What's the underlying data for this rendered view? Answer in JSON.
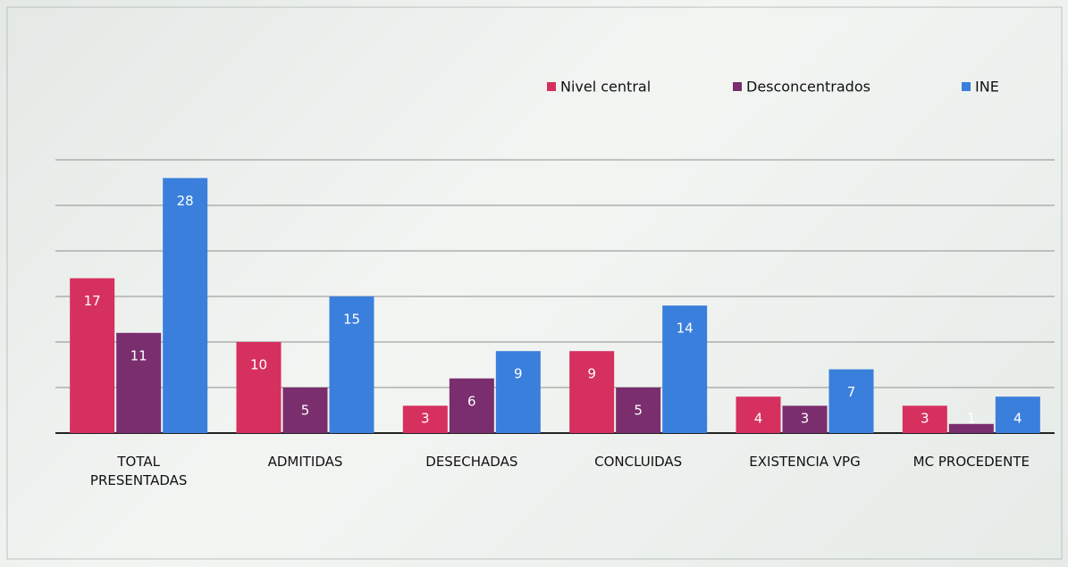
{
  "chart_data": {
    "type": "bar",
    "categories": [
      "TOTAL PRESENTADAS",
      "ADMITIDAS",
      "DESECHADAS",
      "CONCLUIDAS",
      "EXISTENCIA VPG",
      "MC PROCEDENTE"
    ],
    "series": [
      {
        "name": "Nivel central",
        "color": "#d6305f",
        "values": [
          17,
          10,
          3,
          9,
          4,
          3
        ]
      },
      {
        "name": "Desconcentrados",
        "color": "#7a2e6e",
        "values": [
          11,
          5,
          6,
          5,
          3,
          1
        ]
      },
      {
        "name": "INE",
        "color": "#3a7fdc",
        "values": [
          28,
          15,
          9,
          14,
          7,
          4
        ]
      }
    ],
    "ylim": [
      0,
      30
    ],
    "yticks": [
      0,
      5,
      10,
      15,
      20,
      25,
      30
    ],
    "grid": true,
    "legend": "top-right"
  }
}
